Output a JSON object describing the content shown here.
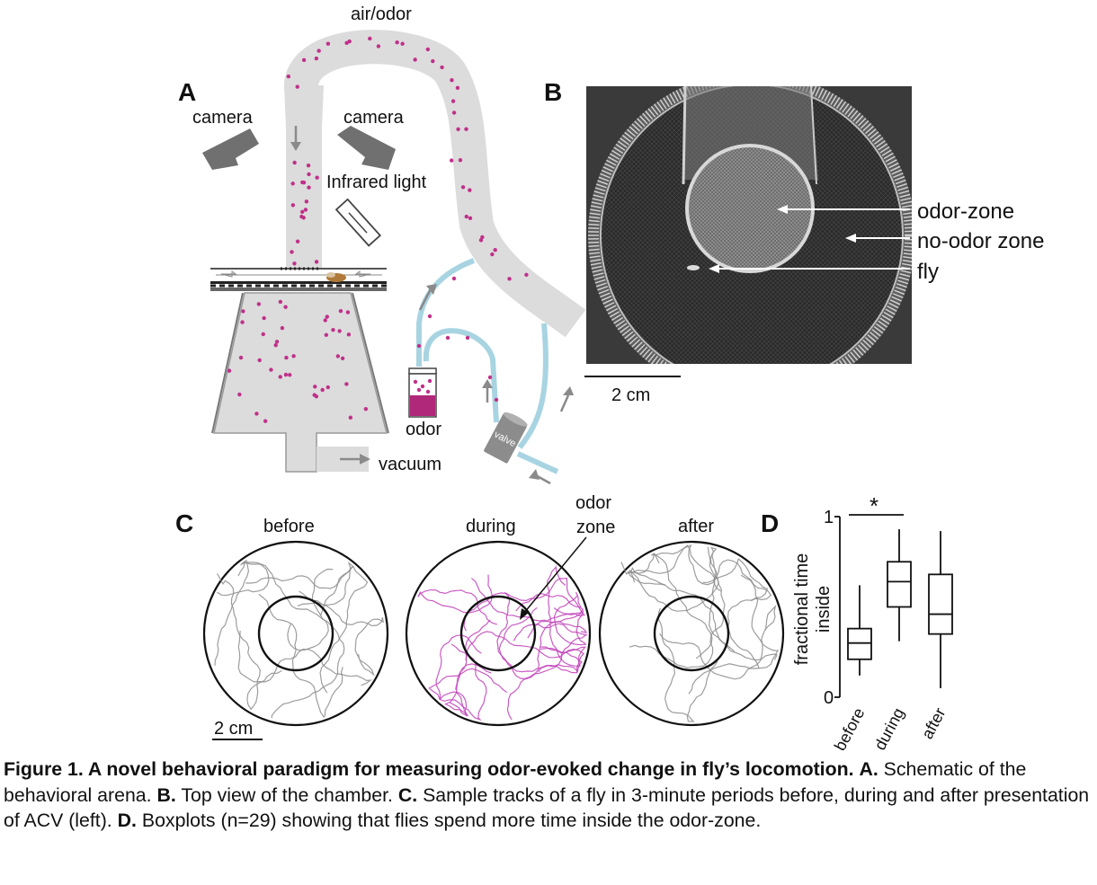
{
  "panels": {
    "A": {
      "letter": "A",
      "labels": {
        "air_odor": "air/odor",
        "camera_left": "camera",
        "camera_right": "camera",
        "infrared": "Infrared light",
        "odor": "odor",
        "valve": "valve",
        "vacuum": "vacuum"
      }
    },
    "B": {
      "letter": "B",
      "labels": {
        "odor_zone": "odor-zone",
        "no_odor_zone": "no-odor zone",
        "fly": "fly",
        "scale": "2 cm"
      }
    },
    "C": {
      "letter": "C",
      "titles": {
        "before": "before",
        "during": "during",
        "after": "after"
      },
      "odor_zone_label": [
        "odor",
        "zone"
      ],
      "scale": "2 cm"
    },
    "D": {
      "letter": "D",
      "ylabel": [
        "fractional time",
        "inside"
      ],
      "significance": "*"
    }
  },
  "chart_data": {
    "type": "box",
    "categories": [
      "before",
      "during",
      "after"
    ],
    "ylim": [
      0,
      1
    ],
    "yticks": [
      "0",
      "1"
    ],
    "boxes": [
      {
        "name": "before",
        "min": 0.12,
        "q1": 0.21,
        "median": 0.3,
        "q3": 0.38,
        "max": 0.62
      },
      {
        "name": "during",
        "min": 0.31,
        "q1": 0.5,
        "median": 0.64,
        "q3": 0.75,
        "max": 0.93
      },
      {
        "name": "after",
        "min": 0.05,
        "q1": 0.35,
        "median": 0.46,
        "q3": 0.68,
        "max": 0.92
      }
    ],
    "n": 29
  },
  "caption": {
    "bold_lead": "Figure 1. A novel behavioral paradigm for measuring odor-evoked change in fly’s locomotion.",
    "A_letter": "A.",
    "A_text": " Schematic of the behavioral arena.",
    "B_letter": "B.",
    "B_text": " Top view of the chamber.",
    "C_letter": "C.",
    "C_text": " Sample tracks of a fly in 3-minute periods before, during and after presentation of ACV (left).",
    "D_letter": "D.",
    "D_text": " Boxplots (n=29) showing that flies spend more time inside the odor-zone."
  },
  "colors": {
    "tube": "#dcdcdc",
    "dots": "#c0308a",
    "blue_tube": "#a8d4e2",
    "gray_arrow": "#8a8a8a",
    "odor_liquid": "#b0287a",
    "track_gray": "#8c8c8c",
    "track_magenta": "#c040b8"
  }
}
